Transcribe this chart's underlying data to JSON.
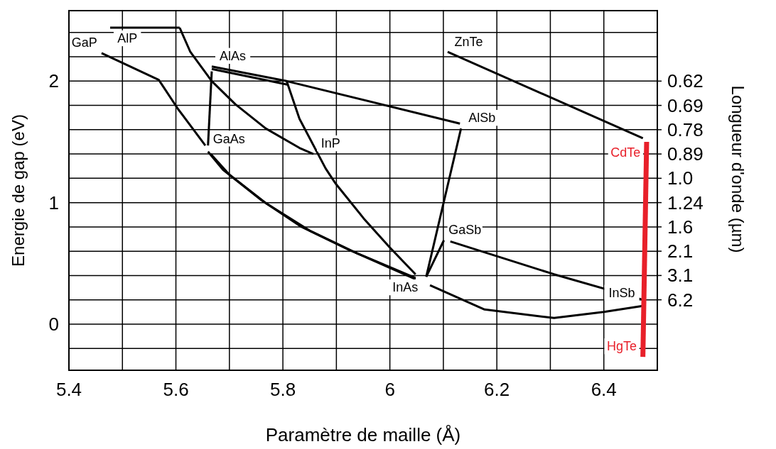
{
  "chart_data": {
    "type": "line",
    "xlabel": "Paramètre de maille  (Å)",
    "ylabel": "Energie de gap (eV)",
    "y2label": "Longueur d'onde (µm)",
    "xlim": [
      5.4,
      6.5
    ],
    "ylim": [
      -0.38,
      2.58
    ],
    "xticks": [
      5.4,
      {
        "value": 5.5,
        "label": null
      },
      5.6,
      {
        "value": 5.7,
        "label": null
      },
      5.8,
      {
        "value": 5.9,
        "label": null
      },
      6.0,
      {
        "value": 6.1,
        "label": null
      },
      6.2,
      {
        "value": 6.3,
        "label": null
      },
      6.4
    ],
    "yticks": [
      {
        "value": -0.2,
        "label": null
      },
      0,
      {
        "value": 0.2,
        "label": null
      },
      {
        "value": 0.4,
        "label": null
      },
      {
        "value": 0.6,
        "label": null
      },
      {
        "value": 0.8,
        "label": null
      },
      1,
      {
        "value": 1.2,
        "label": null
      },
      {
        "value": 1.4,
        "label": null
      },
      {
        "value": 1.6,
        "label": null
      },
      {
        "value": 1.8,
        "label": null
      },
      2,
      {
        "value": 2.2,
        "label": null
      },
      {
        "value": 2.4,
        "label": null
      }
    ],
    "grid": true,
    "marker": "none",
    "line_style": "solid",
    "series": [
      {
        "color": "#000000",
        "x": [
          5.477,
          5.607
        ],
        "values": [
          2.44,
          2.44
        ]
      },
      {
        "color": "#000000",
        "x": [
          5.607,
          5.627,
          5.667,
          5.711,
          5.768,
          5.831,
          5.857
        ],
        "values": [
          2.44,
          2.24,
          2.0,
          1.81,
          1.61,
          1.45,
          1.4
        ]
      },
      {
        "color": "#000000",
        "x": [
          5.461,
          5.568,
          5.604,
          5.655
        ],
        "values": [
          2.23,
          2.01,
          1.77,
          1.47
        ]
      },
      {
        "color": "#000000",
        "x": [
          5.66,
          5.688,
          5.76,
          5.835,
          5.924,
          6.048
        ],
        "values": [
          1.42,
          1.27,
          1.02,
          0.8,
          0.61,
          0.38
        ]
      },
      {
        "color": "#000000",
        "x": [
          5.665,
          5.7,
          5.77,
          5.85,
          5.94,
          6.048
        ],
        "values": [
          1.4,
          1.23,
          0.99,
          0.77,
          0.58,
          0.37
        ]
      },
      {
        "color": "#000000",
        "x": [
          5.667,
          5.66
        ],
        "values": [
          2.08,
          1.47
        ]
      },
      {
        "color": "#000000",
        "x": [
          5.667,
          5.807,
          6.131
        ],
        "values": [
          2.12,
          2.0,
          1.65
        ]
      },
      {
        "color": "#000000",
        "x": [
          5.667,
          5.81
        ],
        "values": [
          2.1,
          1.97
        ]
      },
      {
        "color": "#000000",
        "x": [
          5.807,
          5.831,
          5.88,
          5.898,
          5.951,
          6.0,
          6.048
        ],
        "values": [
          2.0,
          1.69,
          1.28,
          1.16,
          0.87,
          0.63,
          0.41
        ]
      },
      {
        "color": "#000000",
        "x": [
          6.133,
          6.068
        ],
        "values": [
          1.61,
          0.39
        ]
      },
      {
        "color": "#000000",
        "x": [
          6.101,
          6.068
        ],
        "values": [
          0.69,
          0.39
        ]
      },
      {
        "color": "#000000",
        "x": [
          6.113,
          6.307,
          6.473
        ],
        "values": [
          0.68,
          0.41,
          0.2
        ]
      },
      {
        "color": "#000000",
        "x": [
          6.075,
          6.177,
          6.307,
          6.4,
          6.473
        ],
        "values": [
          0.32,
          0.12,
          0.05,
          0.1,
          0.15
        ]
      },
      {
        "color": "#000000",
        "x": [
          6.108,
          6.473
        ],
        "values": [
          2.24,
          1.53
        ]
      },
      {
        "color": "#e8202a",
        "x": [
          6.48,
          6.473
        ],
        "values": [
          1.5,
          -0.27
        ]
      }
    ],
    "annotations": [
      {
        "text": "AlP",
        "x": 5.477,
        "y": 2.44
      },
      {
        "text": "GaP",
        "x": 5.461,
        "y": 2.23
      },
      {
        "text": "AlAs",
        "x": 5.667,
        "y": 2.12
      },
      {
        "text": "GaAs",
        "x": 5.66,
        "y": 1.44
      },
      {
        "text": "InP",
        "x": 5.857,
        "y": 1.4
      },
      {
        "text": "ZnTe",
        "x": 6.108,
        "y": 2.24
      },
      {
        "text": "AlSb",
        "x": 6.133,
        "y": 1.61
      },
      {
        "text": "CdTe",
        "x": 6.48,
        "y": 1.5
      },
      {
        "text": "GaSb",
        "x": 6.101,
        "y": 0.69
      },
      {
        "text": "InAs",
        "x": 6.068,
        "y": 0.39
      },
      {
        "text": "InSb",
        "x": 6.473,
        "y": 0.17
      },
      {
        "text": "HgTe",
        "x": 6.473,
        "y": -0.27
      },
      "0.62",
      "0.69",
      "0.78",
      "0.89",
      "1.0",
      "1.24",
      "1.6",
      "2.1",
      "3.1",
      "6.2"
    ]
  }
}
